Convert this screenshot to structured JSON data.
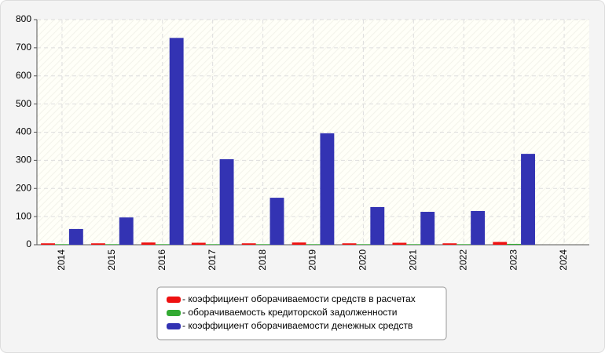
{
  "chart_data": {
    "type": "bar",
    "categories": [
      "2014",
      "2015",
      "2016",
      "2017",
      "2018",
      "2019",
      "2020",
      "2021",
      "2022",
      "2023",
      "2024"
    ],
    "series": [
      {
        "name": "- коэффициент оборачиваемости средств в расчетах",
        "color": "#ee1111",
        "values": [
          5,
          5,
          8,
          7,
          5,
          8,
          5,
          7,
          5,
          10,
          null
        ]
      },
      {
        "name": "- оборачиваемость кредиторской задолженности",
        "color": "#33aa33",
        "values": [
          2,
          2,
          2,
          2,
          2,
          2,
          2,
          2,
          2,
          3,
          null
        ]
      },
      {
        "name": "- коэффициент оборачиваемости денежных средств",
        "color": "#3333b3",
        "values": [
          56,
          97,
          735,
          304,
          167,
          396,
          134,
          117,
          120,
          323,
          null
        ]
      }
    ],
    "ylim": [
      0,
      800
    ],
    "yticks": [
      0,
      100,
      200,
      300,
      400,
      500,
      600,
      700,
      800
    ],
    "grid": true
  }
}
